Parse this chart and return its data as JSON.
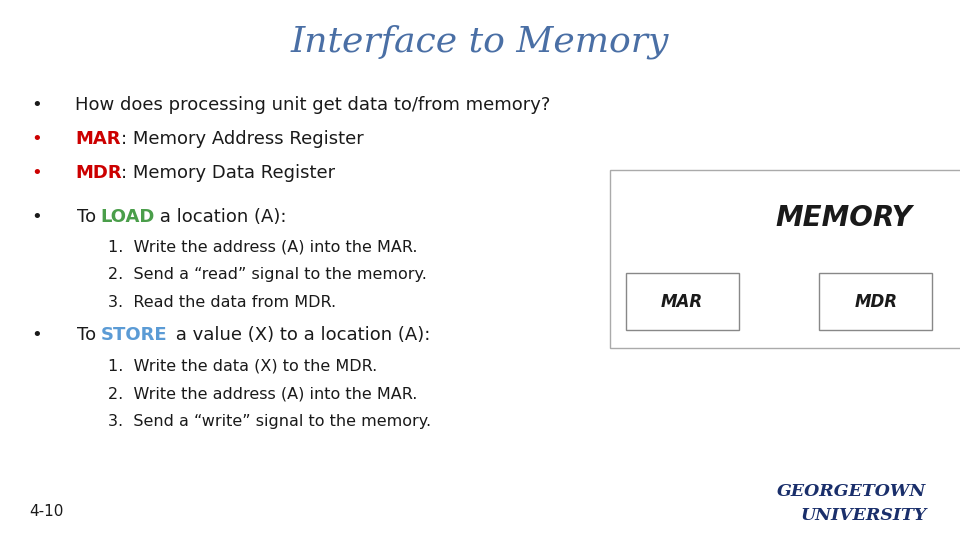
{
  "title": "Interface to Memory",
  "title_color": "#4a6fa5",
  "title_fontsize": 26,
  "background_color": "#ffffff",
  "bullet1": "How does processing unit get data to/from memory?",
  "bullet2_red": "MAR",
  "bullet2_rest": ": Memory Address Register",
  "bullet3_red": "MDR",
  "bullet3_rest": ": Memory Data Register",
  "bullet4_pre": "To ",
  "bullet4_colored": "LOAD",
  "bullet4_colored_color": "#4a9e4a",
  "bullet4_post": " a location (A):",
  "load_steps": [
    "1.  Write the address (A) into the MAR.",
    "2.  Send a “read” signal to the memory.",
    "3.  Read the data from MDR."
  ],
  "bullet5_pre": "To ",
  "bullet5_colored": "STORE",
  "bullet5_colored_color": "#5b9bd5",
  "bullet5_post": " a value (X) to a location (A):",
  "store_steps": [
    "1.  Write the data (X) to the MDR.",
    "2.  Write the address (A) into the MAR.",
    "3.  Send a “write” signal to the memory."
  ],
  "footer_text": "4-10",
  "gu_text_line1": "GEORGETOWN",
  "gu_text_line2": "UNIVERSITY",
  "gu_color": "#1a2f6b",
  "red_color": "#cc0000",
  "black_color": "#1a1a1a",
  "memory_label": "MEMORY",
  "mar_label": "MAR",
  "mdr_label": "MDR"
}
